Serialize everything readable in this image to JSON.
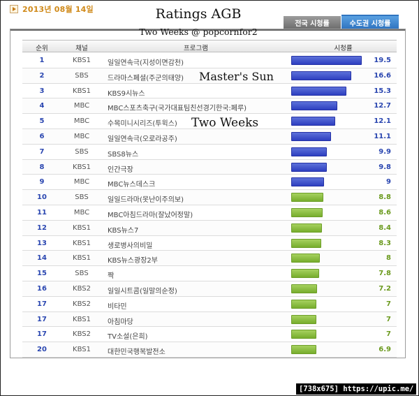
{
  "date": "2013년 08월 14일",
  "overlay": {
    "title": "Ratings AGB",
    "subtitle": "Two Weeks @ popcornfor2",
    "masters_sun": "Master's Sun",
    "two_weeks": "Two Weeks"
  },
  "tabs": [
    {
      "label": "전국 시청률",
      "active": false
    },
    {
      "label": "수도권 시청률",
      "active": true
    }
  ],
  "colors": {
    "top_bar": "#2e3fc0",
    "rest_bar": "#77ad2d",
    "active_tab": "#2f74c0",
    "date": "#d08a1a"
  },
  "table": {
    "headers": {
      "rank": "순위",
      "channel": "채널",
      "program": "프로그램",
      "rating": "시청률"
    },
    "rows": [
      {
        "rank": "1",
        "channel": "KBS1",
        "program": "일일연속극(지성이면감천)",
        "rating": "19.5",
        "value": 19.5,
        "color": "blue"
      },
      {
        "rank": "2",
        "channel": "SBS",
        "program": "드라마스페셜(주군의태양)",
        "rating": "16.6",
        "value": 16.6,
        "color": "blue"
      },
      {
        "rank": "3",
        "channel": "KBS1",
        "program": "KBS9시뉴스",
        "rating": "15.3",
        "value": 15.3,
        "color": "blue"
      },
      {
        "rank": "4",
        "channel": "MBC",
        "program": "MBC스포츠축구(국가대표팀친선경기한국:페루)",
        "rating": "12.7",
        "value": 12.7,
        "color": "blue"
      },
      {
        "rank": "5",
        "channel": "MBC",
        "program": "수목미니시리즈(투윅스)",
        "rating": "12.1",
        "value": 12.1,
        "color": "blue"
      },
      {
        "rank": "6",
        "channel": "MBC",
        "program": "일일연속극(오로라공주)",
        "rating": "11.1",
        "value": 11.1,
        "color": "blue"
      },
      {
        "rank": "7",
        "channel": "SBS",
        "program": "SBS8뉴스",
        "rating": "9.9",
        "value": 9.9,
        "color": "blue"
      },
      {
        "rank": "8",
        "channel": "KBS1",
        "program": "인간극장",
        "rating": "9.8",
        "value": 9.8,
        "color": "blue"
      },
      {
        "rank": "9",
        "channel": "MBC",
        "program": "MBC뉴스데스크",
        "rating": "9",
        "value": 9,
        "color": "blue"
      },
      {
        "rank": "10",
        "channel": "SBS",
        "program": "일일드라마(못난이주의보)",
        "rating": "8.8",
        "value": 8.8,
        "color": "green"
      },
      {
        "rank": "11",
        "channel": "MBC",
        "program": "MBC아침드라마(잘났어정말)",
        "rating": "8.6",
        "value": 8.6,
        "color": "green"
      },
      {
        "rank": "12",
        "channel": "KBS1",
        "program": "KBS뉴스7",
        "rating": "8.4",
        "value": 8.4,
        "color": "green"
      },
      {
        "rank": "13",
        "channel": "KBS1",
        "program": "생로병사의비밀",
        "rating": "8.3",
        "value": 8.3,
        "color": "green"
      },
      {
        "rank": "14",
        "channel": "KBS1",
        "program": "KBS뉴스광장2부",
        "rating": "8",
        "value": 8,
        "color": "green"
      },
      {
        "rank": "15",
        "channel": "SBS",
        "program": "짝",
        "rating": "7.8",
        "value": 7.8,
        "color": "green"
      },
      {
        "rank": "16",
        "channel": "KBS2",
        "program": "일일시트콤(일말의순정)",
        "rating": "7.2",
        "value": 7.2,
        "color": "green"
      },
      {
        "rank": "17",
        "channel": "KBS2",
        "program": "비타민",
        "rating": "7",
        "value": 7,
        "color": "green"
      },
      {
        "rank": "17",
        "channel": "KBS1",
        "program": "아침마당",
        "rating": "7",
        "value": 7,
        "color": "green"
      },
      {
        "rank": "17",
        "channel": "KBS2",
        "program": "TV소설(은희)",
        "rating": "7",
        "value": 7,
        "color": "green"
      },
      {
        "rank": "20",
        "channel": "KBS1",
        "program": "대한민국행복발전소",
        "rating": "6.9",
        "value": 6.9,
        "color": "green"
      }
    ]
  },
  "chart_data": {
    "type": "bar",
    "orientation": "horizontal",
    "categories": [
      "일일연속극(지성이면감천)",
      "드라마스페셜(주군의태양)",
      "KBS9시뉴스",
      "MBC스포츠축구(국가대표팀친선경기한국:페루)",
      "수목미니시리즈(투윅스)",
      "일일연속극(오로라공주)",
      "SBS8뉴스",
      "인간극장",
      "MBC뉴스데스크",
      "일일드라마(못난이주의보)",
      "MBC아침드라마(잘났어정말)",
      "KBS뉴스7",
      "생로병사의비밀",
      "KBS뉴스광장2부",
      "짝",
      "일일시트콤(일말의순정)",
      "비타민",
      "아침마당",
      "TV소설(은희)",
      "대한민국행복발전소"
    ],
    "values": [
      19.5,
      16.6,
      15.3,
      12.7,
      12.1,
      11.1,
      9.9,
      9.8,
      9,
      8.8,
      8.6,
      8.4,
      8.3,
      8,
      7.8,
      7.2,
      7,
      7,
      7,
      6.9
    ],
    "title": "Ratings AGB",
    "subtitle": "Two Weeks @ popcornfor2",
    "xlabel": "",
    "ylabel": "시청률",
    "xlim": [
      0,
      19.5
    ],
    "grid": false,
    "legend": "none"
  },
  "footer": "[738x675] https://upic.me/"
}
